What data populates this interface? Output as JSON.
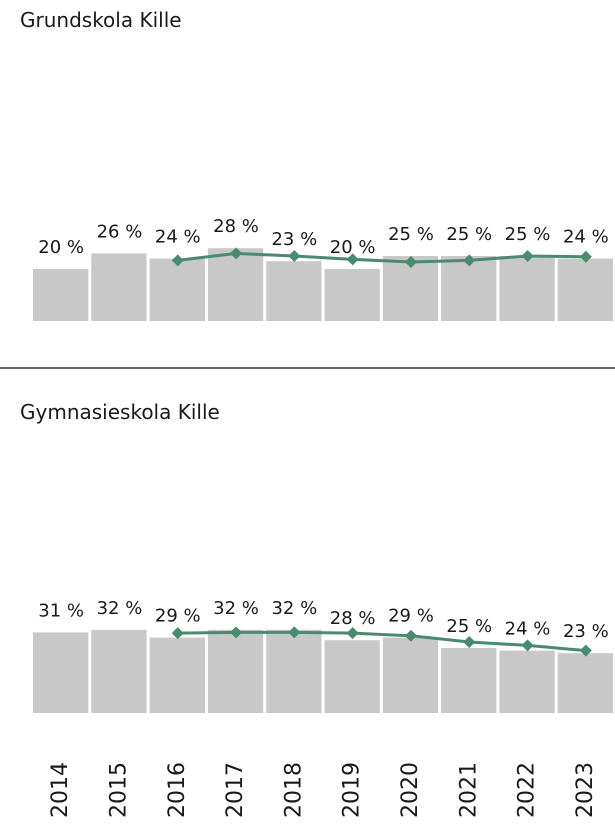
{
  "chart_data": [
    {
      "type": "bar",
      "title": "Grundskola Kille",
      "color": "#c8c8c8",
      "line_color": "#4a8a6e",
      "values": [
        20,
        26,
        24,
        28,
        23,
        20,
        25,
        25,
        25,
        24
      ],
      "value_labels": [
        "20 %",
        "26 %",
        "24 %",
        "28 %",
        "23 %",
        "20 %",
        "25 %",
        "25 %",
        "25 %",
        "24 %"
      ],
      "line_values": [
        null,
        null,
        23.3,
        26,
        25,
        23.7,
        22.7,
        23.3,
        25,
        24.7
      ]
    },
    {
      "type": "bar",
      "title": "Gymnasieskola Kille",
      "color": "#c8c8c8",
      "line_color": "#4a8a6e",
      "categories": [
        "2014",
        "2015",
        "2016",
        "2017",
        "2018",
        "2019",
        "2020",
        "2021",
        "2022",
        "2023"
      ],
      "values": [
        31,
        32,
        29,
        32,
        32,
        28,
        29,
        25,
        24,
        23
      ],
      "value_labels": [
        "31 %",
        "32 %",
        "29 %",
        "32 %",
        "32 %",
        "28 %",
        "29 %",
        "25 %",
        "24 %",
        "23 %"
      ],
      "line_values": [
        null,
        null,
        30.7,
        31,
        31,
        30.7,
        29.7,
        27.3,
        26,
        24
      ]
    }
  ]
}
